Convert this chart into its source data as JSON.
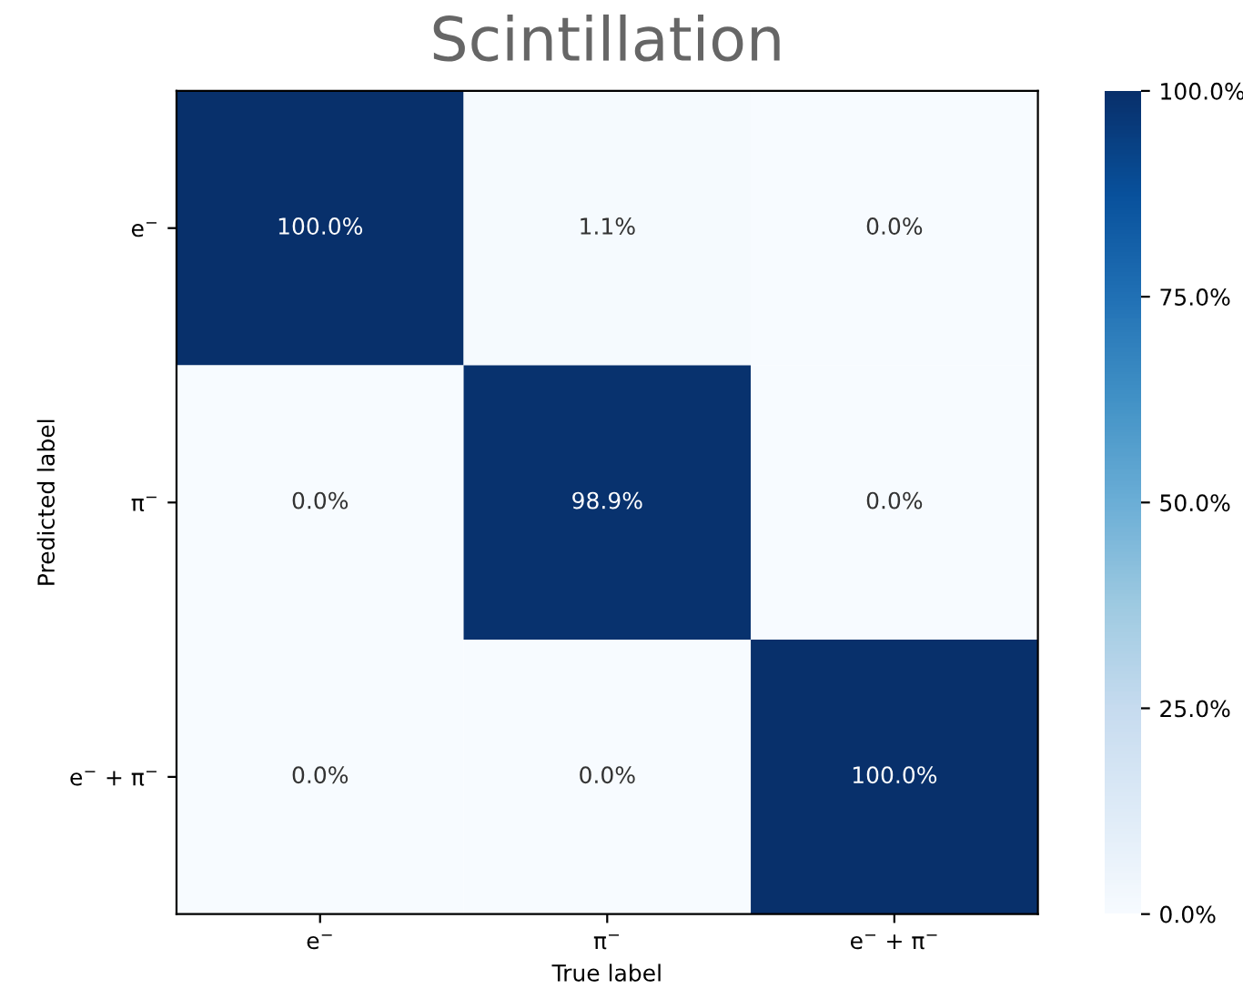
{
  "chart_data": {
    "type": "heatmap",
    "title": "Scintillation",
    "xlabel": "True label",
    "ylabel": "Predicted label",
    "categories": [
      "e$^{−}$",
      "π$^{−}$",
      "e$^{−}$ + π$^{−}$"
    ],
    "y_categories": [
      "e$^{−}$",
      "π$^{−}$",
      "e$^{−}$ + π$^{−}$"
    ],
    "cells": [
      [
        100.0,
        1.1,
        0.0
      ],
      [
        0.0,
        98.9,
        0.0
      ],
      [
        0.0,
        0.0,
        100.0
      ]
    ],
    "cell_labels": [
      [
        "100.0%",
        "1.1%",
        "0.0%"
      ],
      [
        "0.0%",
        "98.9%",
        "0.0%"
      ],
      [
        "0.0%",
        "0.0%",
        "100.0%"
      ]
    ],
    "clim": [
      0,
      100
    ],
    "cticks": [
      {
        "value": 0,
        "label": "0.0%"
      },
      {
        "value": 25,
        "label": "25.0%"
      },
      {
        "value": 50,
        "label": "50.0%"
      },
      {
        "value": 75,
        "label": "75.0%"
      },
      {
        "value": 100,
        "label": "100.0%"
      }
    ],
    "grid": false
  }
}
